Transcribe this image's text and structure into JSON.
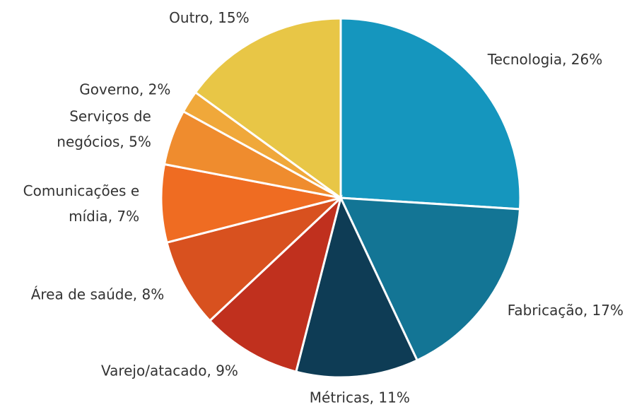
{
  "chart_data": {
    "type": "pie",
    "categories": [
      "Tecnologia, 26%",
      "Fabricação, 17%",
      "Métricas, 11%",
      "Varejo/atacado, 9%",
      "Área de saúde, 8%",
      "Comunicações e\nmídia, 7%",
      "Serviços de\nnegócios, 5%",
      "Governo, 2%",
      "Outro, 15%"
    ],
    "values": [
      26,
      17,
      11,
      9,
      8,
      7,
      5,
      2,
      15
    ],
    "colors": [
      "#1596be",
      "#137595",
      "#0e3c55",
      "#c0301e",
      "#d8511f",
      "#ef6c22",
      "#ef8c2e",
      "#f0a83a",
      "#e8c646"
    ]
  }
}
